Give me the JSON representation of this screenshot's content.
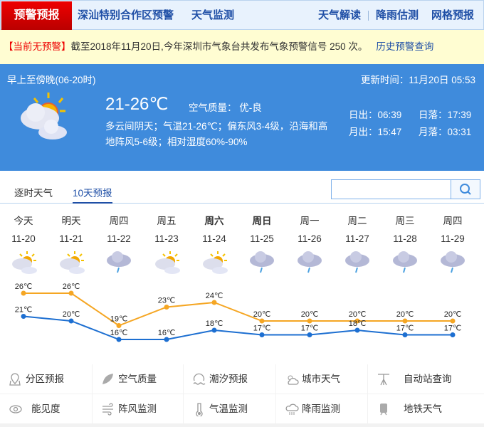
{
  "nav": {
    "active": "预警预报",
    "items": [
      "深汕特别合作区预警",
      "天气监测"
    ],
    "right": [
      "天气解读",
      "降雨估测",
      "网格预报"
    ]
  },
  "alert": {
    "status": "【当前无预警】",
    "text": "截至2018年11月20日,今年深圳市气象台共发布气象预警信号 250 次。",
    "link": "历史预警查询"
  },
  "current": {
    "period": "早上至傍晚(06-20时)",
    "update": "更新时间：11月20日 05:53",
    "temp": "21-26℃",
    "aqi": "空气质量： 优-良",
    "desc1": "多云间阴天；气温21-26℃；偏东风3-4级，沿海和高",
    "desc2": "地阵风5-6级；相对湿度60%-90%",
    "sunrise": "日出：06:39",
    "sunset": "日落：17:39",
    "moonrise": "月出：15:47",
    "moonset": "月落：03:31",
    "icon": "partly-cloudy-icon"
  },
  "tabs": [
    "逐时天气",
    "10天预报"
  ],
  "search": {
    "placeholder": "",
    "value": ""
  },
  "forecast": {
    "days": [
      {
        "week": "今天",
        "date": "11-20",
        "icon": "partly-cloudy",
        "high": "26℃",
        "low": "21℃"
      },
      {
        "week": "明天",
        "date": "11-21",
        "icon": "partly-cloudy",
        "high": "26℃",
        "low": "20℃"
      },
      {
        "week": "周四",
        "date": "11-22",
        "icon": "rain",
        "high": "19℃",
        "low": "16℃"
      },
      {
        "week": "周五",
        "date": "11-23",
        "icon": "partly-cloudy",
        "high": "23℃",
        "low": "16℃"
      },
      {
        "week": "周六",
        "date": "11-24",
        "icon": "partly-cloudy",
        "high": "24℃",
        "low": "18℃"
      },
      {
        "week": "周日",
        "date": "11-25",
        "icon": "rain",
        "high": "20℃",
        "low": "17℃"
      },
      {
        "week": "周一",
        "date": "11-26",
        "icon": "rain",
        "high": "20℃",
        "low": "17℃"
      },
      {
        "week": "周二",
        "date": "11-27",
        "icon": "rain",
        "high": "20℃",
        "low": "18℃"
      },
      {
        "week": "周三",
        "date": "11-28",
        "icon": "rain",
        "high": "20℃",
        "low": "17℃"
      },
      {
        "week": "周四",
        "date": "11-29",
        "icon": "rain",
        "high": "20℃",
        "low": "17℃"
      }
    ]
  },
  "chart_data": {
    "type": "line",
    "categories": [
      "11-20",
      "11-21",
      "11-22",
      "11-23",
      "11-24",
      "11-25",
      "11-26",
      "11-27",
      "11-28",
      "11-29"
    ],
    "series": [
      {
        "values": [
          26,
          26,
          19,
          23,
          24,
          20,
          20,
          20,
          20,
          20
        ],
        "color": "#f5a623"
      },
      {
        "values": [
          21,
          20,
          16,
          16,
          18,
          17,
          17,
          18,
          17,
          17
        ],
        "color": "#1d6fd1"
      }
    ],
    "unit": "℃"
  },
  "services": [
    {
      "label": "分区预报",
      "icon": "map-pin-icon"
    },
    {
      "label": "空气质量",
      "icon": "leaf-icon"
    },
    {
      "label": "潮汐预报",
      "icon": "tide-icon"
    },
    {
      "label": "城市天气",
      "icon": "sun-cloud-icon"
    },
    {
      "label": "自动站查询",
      "icon": "weather-station-icon"
    },
    {
      "label": "能见度",
      "icon": "eye-icon"
    },
    {
      "label": "阵风监测",
      "icon": "wind-icon"
    },
    {
      "label": "气温监测",
      "icon": "thermometer-icon"
    },
    {
      "label": "降雨监测",
      "icon": "rain-cloud-icon"
    },
    {
      "label": "地铁天气",
      "icon": "metro-icon"
    }
  ]
}
